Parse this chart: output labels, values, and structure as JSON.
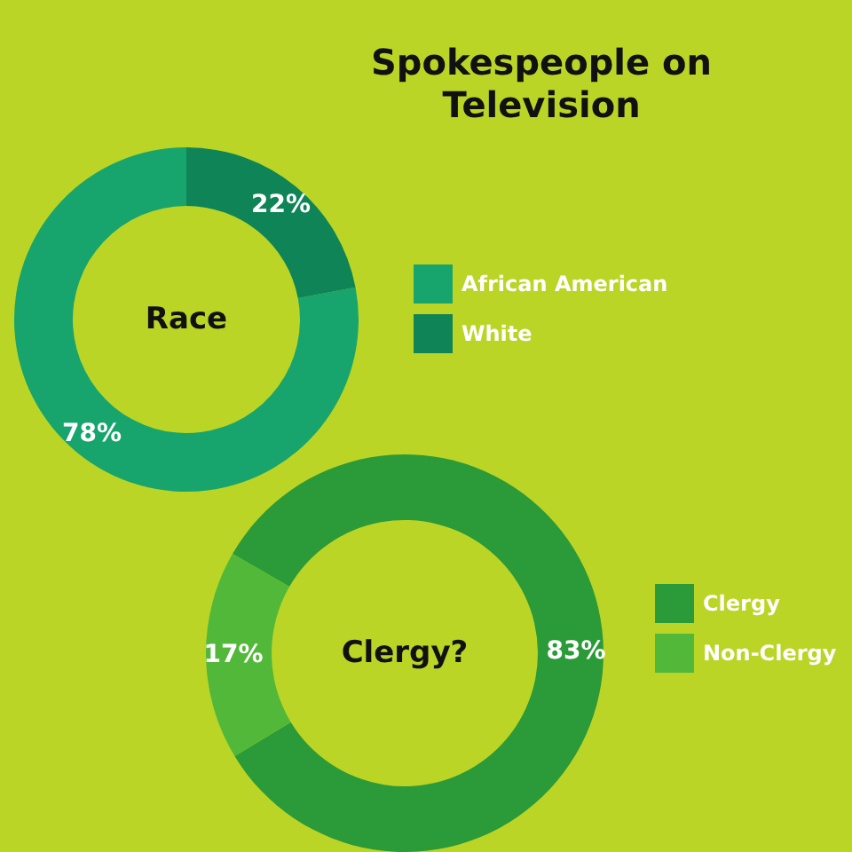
{
  "chart_data": [
    {
      "type": "donut",
      "title": "Spokespeople on\nTelevision",
      "annotations": [
        "Race"
      ],
      "categories": [
        "African American",
        "White"
      ],
      "values": [
        78,
        22
      ],
      "colors": [
        "#17a56d",
        "#0f8457"
      ],
      "value_labels": [
        "78%",
        "22%"
      ],
      "legend": "right"
    },
    {
      "type": "donut",
      "annotations": [
        "Clergy?"
      ],
      "categories": [
        "Clergy",
        "Non-Clergy"
      ],
      "values": [
        83,
        17
      ],
      "colors": [
        "#2b9a38",
        "#52b83a"
      ],
      "value_labels": [
        "83%",
        "17%"
      ],
      "legend": "right"
    }
  ]
}
